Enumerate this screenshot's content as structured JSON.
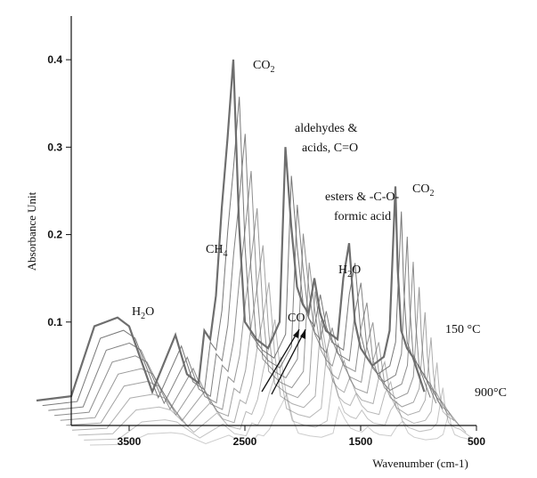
{
  "chart_data": {
    "type": "line",
    "title": "",
    "xlabel": "Wavenumber (cm-1)",
    "ylabel": "Absorbance Unit",
    "x_reversed": true,
    "xlim": [
      4000,
      500
    ],
    "ylim": [
      0,
      0.45
    ],
    "x_ticks": [
      "3500",
      "2500",
      "1500",
      "500"
    ],
    "y_ticks": [
      "0.1",
      "0.2",
      "0.3",
      "0.4"
    ],
    "plot_style": "stacked 3D waterfall of FTIR spectra",
    "grid": false,
    "series_count_visible": 10,
    "series": [
      {
        "values_note": "front spectrum (highest temperature of stacked set)",
        "x": [
          3900,
          3600,
          3400,
          3300,
          3200,
          3100,
          2900,
          2700,
          2600,
          2500,
          2450,
          2400,
          2350,
          2300,
          2250,
          2200,
          2150,
          2100,
          2000,
          1900,
          1800,
          1750,
          1700,
          1650,
          1600,
          1550,
          1500,
          1450,
          1400,
          1300,
          1250,
          1200,
          1150,
          1100,
          1000,
          900,
          850,
          800,
          780,
          750,
          700,
          650,
          600,
          550
        ],
        "values": [
          0.0,
          0.005,
          0.085,
          0.09,
          0.095,
          0.085,
          0.01,
          0.075,
          0.03,
          0.02,
          0.08,
          0.07,
          0.12,
          0.22,
          0.3,
          0.39,
          0.2,
          0.09,
          0.07,
          0.06,
          0.09,
          0.29,
          0.2,
          0.13,
          0.11,
          0.1,
          0.14,
          0.1,
          0.08,
          0.07,
          0.14,
          0.18,
          0.09,
          0.06,
          0.04,
          0.05,
          0.08,
          0.245,
          0.15,
          0.08,
          0.06,
          0.05,
          0.03,
          0.01
        ]
      }
    ],
    "annotations": [
      {
        "label": "CO",
        "sub": "2",
        "x": 2100,
        "y": 0.4
      },
      {
        "label": "aldehydes &",
        "x": 1700,
        "y": 0.33
      },
      {
        "label": "acids, C=O",
        "x": 1700,
        "y": 0.31
      },
      {
        "label": "CO",
        "sub": "2",
        "x": 750,
        "y": 0.26
      },
      {
        "label": "esters & -C-O-",
        "x": 1300,
        "y": 0.22
      },
      {
        "label": "formic acid",
        "x": 1300,
        "y": 0.2
      },
      {
        "label": "H",
        "sub": "2",
        "label2": "O",
        "x": 1600,
        "y": 0.16
      },
      {
        "label": "H",
        "sub": "2",
        "label2": "O",
        "x": 3300,
        "y": 0.12
      },
      {
        "label": "CH",
        "sub": "4",
        "x": 2700,
        "y": 0.1
      },
      {
        "label": "CO",
        "x": 1900,
        "y": 0.09
      },
      {
        "label": "150 °C",
        "x": 400,
        "y": 0.09
      },
      {
        "label": "900°C",
        "x": 380,
        "y": 0.03
      }
    ],
    "colors": {
      "trace": "#6e6e6e",
      "axis": "#111111"
    }
  }
}
